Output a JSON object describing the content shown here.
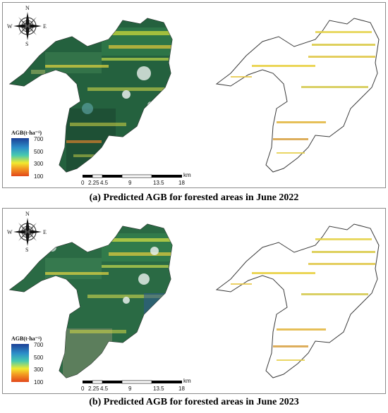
{
  "panels": [
    {
      "id": "a",
      "caption": "(a) Predicted AGB for forested areas in June 2022",
      "legend": {
        "title": "AGB(t·ha⁻¹)",
        "ticks": [
          "700",
          "500",
          "300",
          "100"
        ]
      },
      "scalebar": {
        "labels": [
          "0",
          "2.25",
          "4.5",
          "9",
          "13.5",
          "18"
        ],
        "unit": "km"
      },
      "compass": {
        "n": "N",
        "s": "S",
        "e": "E",
        "w": "W"
      }
    },
    {
      "id": "b",
      "caption": "(b) Predicted AGB for forested areas in June 2023",
      "legend": {
        "title": "AGB(t·ha⁻¹)",
        "ticks": [
          "700",
          "500",
          "300",
          "100"
        ]
      },
      "scalebar": {
        "labels": [
          "0",
          "2.25",
          "4.5",
          "9",
          "13.5",
          "18"
        ],
        "unit": "km"
      },
      "compass": {
        "n": "N",
        "s": "S",
        "e": "E",
        "w": "W"
      }
    }
  ],
  "colors": {
    "boundary": "#3a3a3a",
    "agb_low": "#e05a1e",
    "agb_mid": "#e8e83a",
    "agb_high": "#1a4f9a"
  }
}
